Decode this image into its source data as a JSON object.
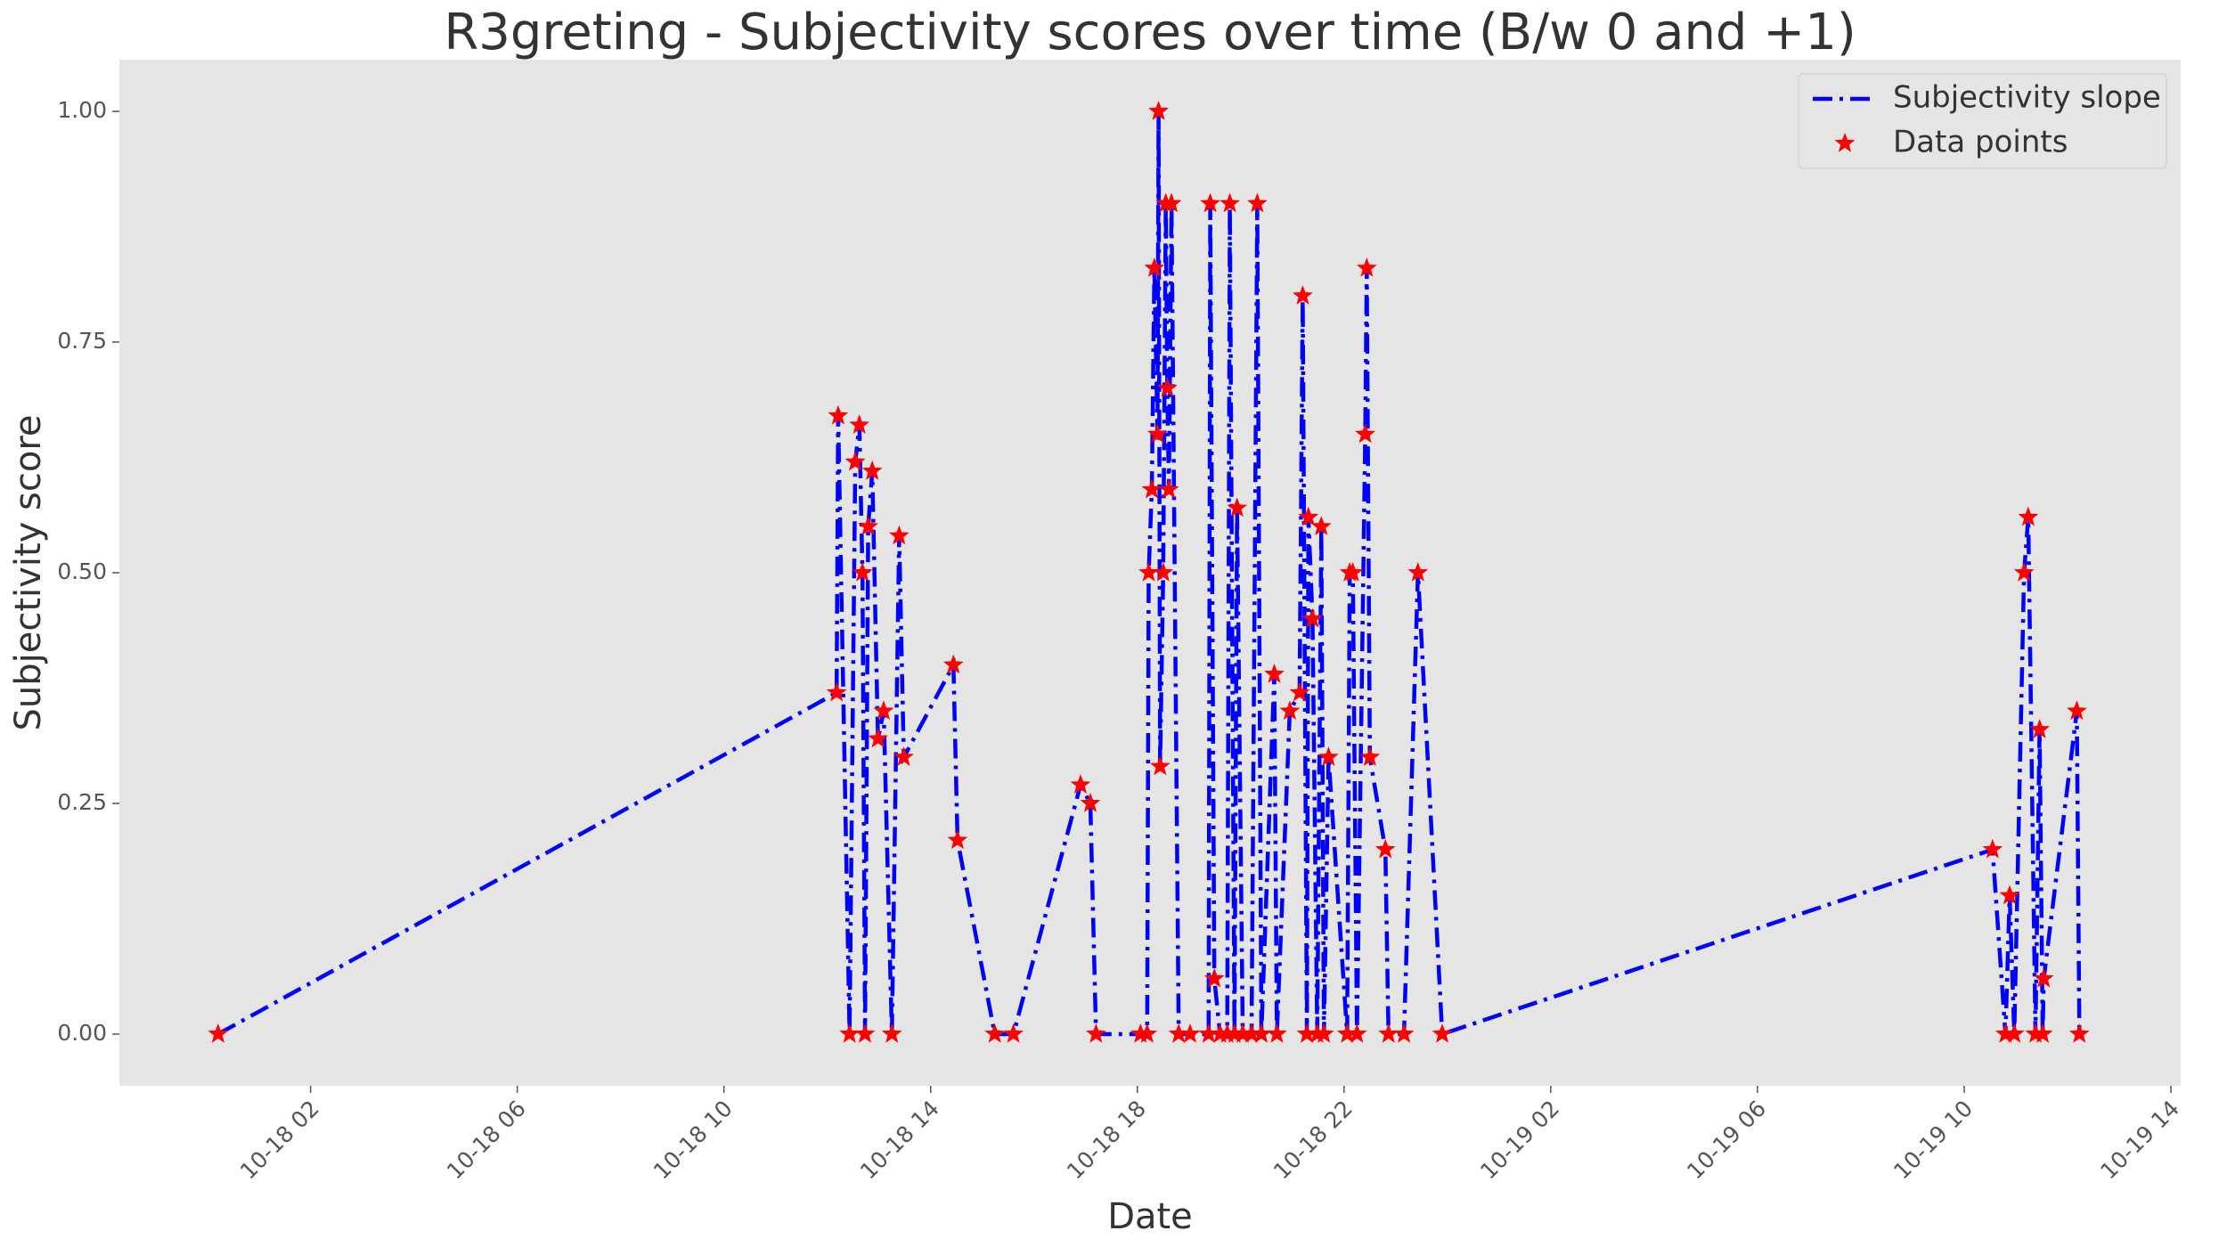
{
  "chart_data": {
    "type": "line",
    "title": "R3greting - Subjectivity scores over time (B/w 0 and +1)",
    "x_label": "Date",
    "y_label": "Subjectivity score",
    "x": [
      0.21,
      12.18,
      12.21,
      12.43,
      12.54,
      12.62,
      12.68,
      12.73,
      12.79,
      12.87,
      12.98,
      13.09,
      13.25,
      13.39,
      13.48,
      14.44,
      14.52,
      15.24,
      15.6,
      16.9,
      17.09,
      17.2,
      18.06,
      18.19,
      18.22,
      18.28,
      18.33,
      18.39,
      18.41,
      18.44,
      18.5,
      18.55,
      18.58,
      18.61,
      18.66,
      18.8,
      19.02,
      19.38,
      19.41,
      19.49,
      19.6,
      19.74,
      19.79,
      19.88,
      19.93,
      20.04,
      20.21,
      20.32,
      20.4,
      20.65,
      20.7,
      20.95,
      21.14,
      21.2,
      21.28,
      21.31,
      21.39,
      21.48,
      21.56,
      21.61,
      21.7,
      22.06,
      22.11,
      22.17,
      22.25,
      22.41,
      22.44,
      22.5,
      22.8,
      22.86,
      23.16,
      23.43,
      23.9,
      34.55,
      34.8,
      34.88,
      34.97,
      35.16,
      35.24,
      35.38,
      35.46,
      35.52,
      35.54,
      36.18,
      36.23
    ],
    "series": [
      {
        "name": "Subjectivity slope",
        "color": "#0000ff",
        "style": "line",
        "values": [
          0,
          0.37,
          0.67,
          0,
          0.62,
          0.66,
          0.5,
          0,
          0.55,
          0.61,
          0.32,
          0.35,
          0,
          0.54,
          0.3,
          0.4,
          0.21,
          0,
          0,
          0.27,
          0.25,
          0,
          0,
          0,
          0.5,
          0.59,
          0.83,
          0.65,
          1.0,
          0.29,
          0.5,
          0.9,
          0.7,
          0.59,
          0.9,
          0,
          0,
          0,
          0.9,
          0.06,
          0,
          0,
          0.9,
          0,
          0.57,
          0,
          0,
          0.9,
          0,
          0.39,
          0,
          0.35,
          0.37,
          0.8,
          0,
          0.56,
          0.45,
          0,
          0.55,
          0,
          0.3,
          0,
          0.5,
          0.5,
          0,
          0.65,
          0.83,
          0.3,
          0.2,
          0,
          0,
          0.5,
          0,
          0.2,
          0,
          0.15,
          0,
          0.5,
          0.56,
          0,
          0.33,
          0,
          0.06,
          0.35,
          0
        ]
      },
      {
        "name": "Data points",
        "color": "#ff0000",
        "style": "scatter",
        "values": [
          0,
          0.37,
          0.67,
          0,
          0.62,
          0.66,
          0.5,
          0,
          0.55,
          0.61,
          0.32,
          0.35,
          0,
          0.54,
          0.3,
          0.4,
          0.21,
          0,
          0,
          0.27,
          0.25,
          0,
          0,
          0,
          0.5,
          0.59,
          0.83,
          0.65,
          1.0,
          0.29,
          0.5,
          0.9,
          0.7,
          0.59,
          0.9,
          0,
          0,
          0,
          0.9,
          0.06,
          0,
          0,
          0.9,
          0,
          0.57,
          0,
          0,
          0.9,
          0,
          0.39,
          0,
          0.35,
          0.37,
          0.8,
          0,
          0.56,
          0.45,
          0,
          0.55,
          0,
          0.3,
          0,
          0.5,
          0.5,
          0,
          0.65,
          0.83,
          0.3,
          0.2,
          0,
          0,
          0.5,
          0,
          0.2,
          0,
          0.15,
          0,
          0.5,
          0.56,
          0,
          0.33,
          0,
          0.06,
          0.35,
          0
        ]
      }
    ],
    "xlim": [
      -1.7,
      38.19
    ],
    "xticks": [
      {
        "value": 2,
        "label": "10-18 02"
      },
      {
        "value": 6,
        "label": "10-18 06"
      },
      {
        "value": 10,
        "label": "10-18 10"
      },
      {
        "value": 14,
        "label": "10-18 14"
      },
      {
        "value": 18,
        "label": "10-18 18"
      },
      {
        "value": 22,
        "label": "10-18 22"
      },
      {
        "value": 26,
        "label": "10-19 02"
      },
      {
        "value": 30,
        "label": "10-19 06"
      },
      {
        "value": 34,
        "label": "10-19 10"
      },
      {
        "value": 38,
        "label": "10-19 14"
      }
    ],
    "ylim": [
      -0.056,
      1.056
    ],
    "yticks": [
      {
        "value": 0,
        "label": "0.00"
      },
      {
        "value": 0.25,
        "label": "0.25"
      },
      {
        "value": 0.5,
        "label": "0.50"
      },
      {
        "value": 0.75,
        "label": "0.75"
      },
      {
        "value": 1.0,
        "label": "1.00"
      }
    ],
    "grid": false,
    "legend": "upper right"
  }
}
